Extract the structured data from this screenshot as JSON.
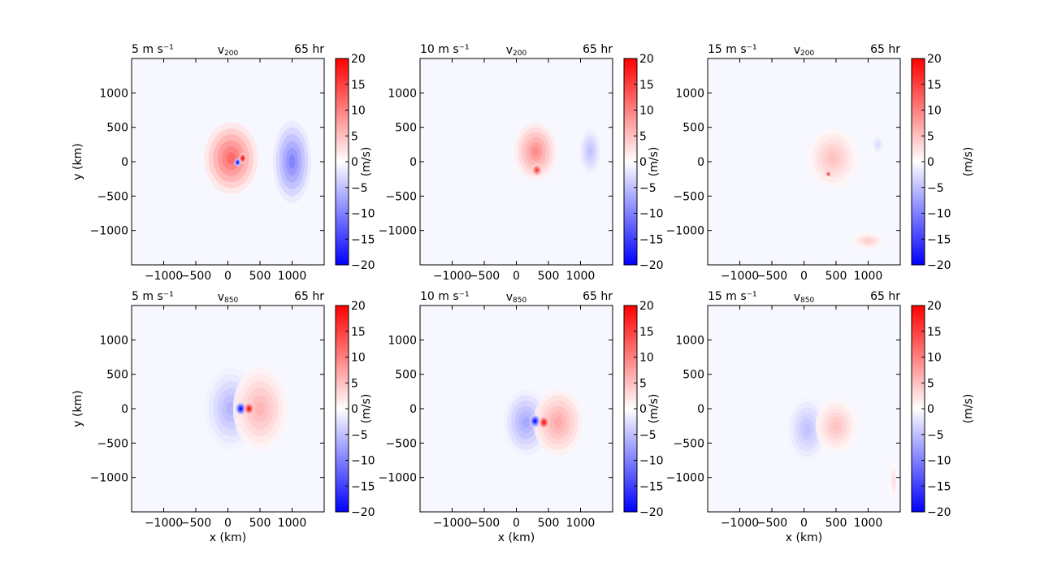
{
  "chart_data": [
    {
      "type": "heatmap",
      "title_left": "5 m s⁻¹",
      "title_center": "v",
      "title_center_sub": "200",
      "title_right": "65 hr",
      "xlabel": "",
      "ylabel": "y (km)",
      "xlim": [
        -1500,
        1500
      ],
      "ylim": [
        -1500,
        1500
      ],
      "xticks": [
        "−1000",
        "−500",
        "0",
        "500",
        "1000"
      ],
      "yticks": [
        "1000",
        "500",
        "0",
        "−500",
        "−1000"
      ],
      "colorbar": {
        "label": "",
        "min": -20,
        "max": 20,
        "ticks": [
          "20",
          "15",
          "10",
          "5",
          "0",
          "−5",
          "−10",
          "−15",
          "−20"
        ],
        "colormap": "bwr"
      },
      "features": [
        {
          "x": 50,
          "y": 50,
          "rx": 420,
          "ry": 520,
          "value": 12
        },
        {
          "x": 1000,
          "y": 0,
          "rx": 300,
          "ry": 600,
          "value": -10
        },
        {
          "x": 230,
          "y": 50,
          "rx": 60,
          "ry": 80,
          "value": 20
        },
        {
          "x": 150,
          "y": -10,
          "rx": 50,
          "ry": 60,
          "value": -20
        }
      ]
    },
    {
      "type": "heatmap",
      "title_left": "10 m s⁻¹",
      "title_center": "v",
      "title_center_sub": "200",
      "title_right": "65 hr",
      "xlabel": "",
      "ylabel": "(m/s)",
      "xlim": [
        -1500,
        1500
      ],
      "ylim": [
        -1500,
        1500
      ],
      "xticks": [
        "−1000",
        "−500",
        "0",
        "500",
        "1000"
      ],
      "yticks": [
        "1000",
        "500",
        "0",
        "−500",
        "−1000"
      ],
      "colorbar": {
        "label": "",
        "min": -20,
        "max": 20,
        "ticks": [
          "20",
          "15",
          "10",
          "5",
          "0",
          "−5",
          "−10",
          "−15",
          "−20"
        ],
        "colormap": "bwr"
      },
      "features": [
        {
          "x": 300,
          "y": 150,
          "rx": 330,
          "ry": 420,
          "value": 9
        },
        {
          "x": 1150,
          "y": 150,
          "rx": 180,
          "ry": 350,
          "value": -5
        },
        {
          "x": 320,
          "y": -120,
          "rx": 80,
          "ry": 90,
          "value": 16
        }
      ]
    },
    {
      "type": "heatmap",
      "title_left": "15 m s⁻¹",
      "title_center": "v",
      "title_center_sub": "200",
      "title_right": "65 hr",
      "xlabel": "",
      "ylabel": "(m/s)",
      "xlim": [
        -1500,
        1500
      ],
      "ylim": [
        -1500,
        1500
      ],
      "xticks": [
        "−1000",
        "−500",
        "0",
        "500",
        "1000"
      ],
      "yticks": [
        "1000",
        "500",
        "0",
        "−500",
        "−1000"
      ],
      "colorbar": {
        "label": "(m/s)",
        "min": -20,
        "max": 20,
        "ticks": [
          "20",
          "15",
          "10",
          "5",
          "0",
          "−5",
          "−10",
          "−15",
          "−20"
        ],
        "colormap": "bwr"
      },
      "features": [
        {
          "x": 450,
          "y": 50,
          "rx": 380,
          "ry": 420,
          "value": 5
        },
        {
          "x": 1000,
          "y": -1150,
          "rx": 250,
          "ry": 120,
          "value": 4
        },
        {
          "x": 1150,
          "y": 250,
          "rx": 100,
          "ry": 150,
          "value": -3
        },
        {
          "x": 380,
          "y": -180,
          "rx": 40,
          "ry": 40,
          "value": 18
        }
      ]
    },
    {
      "type": "heatmap",
      "title_left": "5 m s⁻¹",
      "title_center": "v",
      "title_center_sub": "850",
      "title_right": "65 hr",
      "xlabel": "x (km)",
      "ylabel": "y (km)",
      "xlim": [
        -1500,
        1500
      ],
      "ylim": [
        -1500,
        1500
      ],
      "xticks": [
        "−1000",
        "−500",
        "0",
        "500",
        "1000"
      ],
      "yticks": [
        "1000",
        "500",
        "0",
        "−500",
        "−1000"
      ],
      "colorbar": {
        "label": "",
        "min": -20,
        "max": 20,
        "ticks": [
          "20",
          "15",
          "10",
          "5",
          "0",
          "−5",
          "−10",
          "−15",
          "−20"
        ],
        "colormap": "bwr"
      },
      "features": [
        {
          "x": 50,
          "y": 0,
          "rx": 420,
          "ry": 600,
          "value": -6
        },
        {
          "x": 500,
          "y": 0,
          "rx": 420,
          "ry": 600,
          "value": 6
        },
        {
          "x": 200,
          "y": 0,
          "rx": 80,
          "ry": 90,
          "value": -20
        },
        {
          "x": 330,
          "y": 0,
          "rx": 80,
          "ry": 90,
          "value": 20
        }
      ]
    },
    {
      "type": "heatmap",
      "title_left": "10 m s⁻¹",
      "title_center": "v",
      "title_center_sub": "850",
      "title_right": "65 hr",
      "xlabel": "x (km)",
      "ylabel": "(m/s)",
      "xlim": [
        -1500,
        1500
      ],
      "ylim": [
        -1500,
        1500
      ],
      "xticks": [
        "−1000",
        "−500",
        "0",
        "500",
        "1000"
      ],
      "yticks": [
        "1000",
        "500",
        "0",
        "−500",
        "−1000"
      ],
      "colorbar": {
        "label": "",
        "min": -20,
        "max": 20,
        "ticks": [
          "20",
          "15",
          "10",
          "5",
          "0",
          "−5",
          "−10",
          "−15",
          "−20"
        ],
        "colormap": "bwr"
      },
      "features": [
        {
          "x": 150,
          "y": -200,
          "rx": 350,
          "ry": 480,
          "value": -7
        },
        {
          "x": 650,
          "y": -200,
          "rx": 380,
          "ry": 480,
          "value": 7
        },
        {
          "x": 290,
          "y": -180,
          "rx": 80,
          "ry": 90,
          "value": -20
        },
        {
          "x": 430,
          "y": -200,
          "rx": 80,
          "ry": 90,
          "value": 20
        }
      ]
    },
    {
      "type": "heatmap",
      "title_left": "15 m s⁻¹",
      "title_center": "v",
      "title_center_sub": "850",
      "title_right": "65 hr",
      "xlabel": "x (km)",
      "ylabel": "(m/s)",
      "xlim": [
        -1500,
        1500
      ],
      "ylim": [
        -1500,
        1500
      ],
      "xticks": [
        "−1000",
        "−500",
        "0",
        "500",
        "1000"
      ],
      "yticks": [
        "1000",
        "500",
        "0",
        "−500",
        "−1000"
      ],
      "colorbar": {
        "label": "(m/s)",
        "min": -20,
        "max": 20,
        "ticks": [
          "20",
          "15",
          "10",
          "5",
          "0",
          "−5",
          "−10",
          "−15",
          "−20"
        ],
        "colormap": "bwr"
      },
      "features": [
        {
          "x": 50,
          "y": -300,
          "rx": 320,
          "ry": 480,
          "value": -5
        },
        {
          "x": 500,
          "y": -250,
          "rx": 320,
          "ry": 380,
          "value": 5
        },
        {
          "x": 1400,
          "y": -1050,
          "rx": 60,
          "ry": 250,
          "value": 3
        }
      ]
    }
  ]
}
